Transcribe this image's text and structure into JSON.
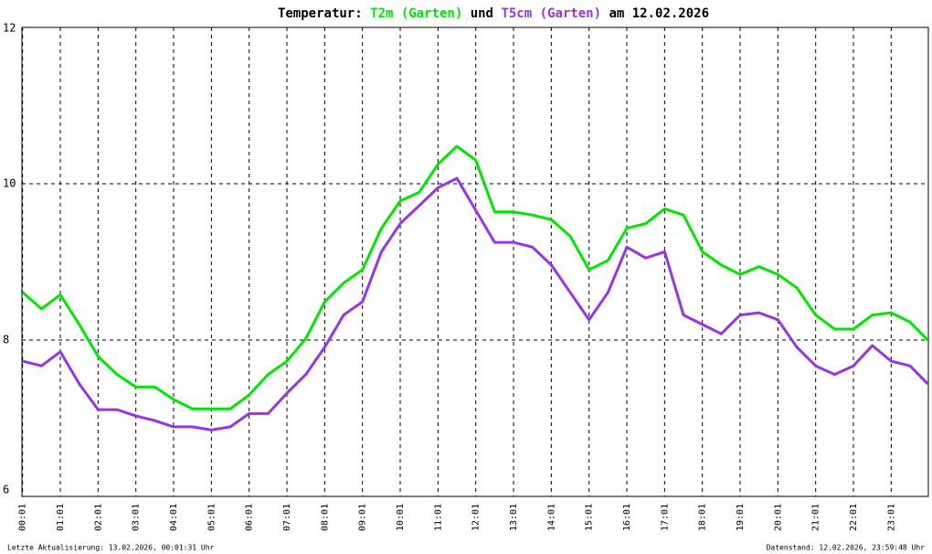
{
  "chart_data": {
    "type": "line",
    "title_prefix": "Temperatur:",
    "title_joiner": "und",
    "title_suffix": "am 12.02.2026",
    "x": [
      "00:01",
      "00:31",
      "01:01",
      "01:31",
      "02:01",
      "02:31",
      "03:01",
      "03:31",
      "04:01",
      "04:31",
      "05:01",
      "05:31",
      "06:01",
      "06:31",
      "07:01",
      "07:31",
      "08:01",
      "08:31",
      "09:01",
      "09:31",
      "10:01",
      "10:31",
      "11:01",
      "11:31",
      "12:01",
      "12:31",
      "13:01",
      "13:31",
      "14:01",
      "14:31",
      "15:01",
      "15:31",
      "16:01",
      "16:31",
      "17:01",
      "17:31",
      "18:01",
      "18:31",
      "19:01",
      "19:31",
      "20:01",
      "20:31",
      "21:01",
      "21:31",
      "22:01",
      "22:31",
      "23:01",
      "23:31",
      "23:59"
    ],
    "series": [
      {
        "name": "T2m (Garten)",
        "color": "#00e600",
        "values": [
          8.61,
          8.4,
          8.58,
          8.2,
          7.79,
          7.56,
          7.4,
          7.4,
          7.24,
          7.12,
          7.12,
          7.12,
          7.3,
          7.56,
          7.73,
          8.02,
          8.49,
          8.73,
          8.9,
          9.43,
          9.78,
          9.89,
          10.25,
          10.48,
          10.3,
          9.64,
          9.64,
          9.6,
          9.54,
          9.33,
          8.9,
          9.02,
          9.43,
          9.49,
          9.68,
          9.6,
          9.13,
          8.96,
          8.84,
          8.94,
          8.84,
          8.67,
          8.32,
          8.14,
          8.14,
          8.32,
          8.35,
          8.23,
          8.0
        ]
      },
      {
        "name": "T5cm (Garten)",
        "color": "#9933e6",
        "values": [
          7.73,
          7.67,
          7.85,
          7.44,
          7.11,
          7.11,
          7.03,
          6.97,
          6.89,
          6.89,
          6.85,
          6.89,
          7.06,
          7.06,
          7.32,
          7.56,
          7.91,
          8.32,
          8.49,
          9.13,
          9.49,
          9.72,
          9.95,
          10.07,
          9.66,
          9.25,
          9.25,
          9.19,
          8.96,
          8.61,
          8.26,
          8.61,
          9.19,
          9.05,
          9.13,
          8.32,
          8.2,
          8.08,
          8.32,
          8.35,
          8.26,
          7.91,
          7.67,
          7.56,
          7.67,
          7.93,
          7.73,
          7.67,
          7.44
        ]
      }
    ],
    "xlim": [
      "00:00",
      "24:00"
    ],
    "xticks": [
      "00:01",
      "01:01",
      "02:01",
      "03:01",
      "04:01",
      "05:01",
      "06:01",
      "07:01",
      "08:01",
      "09:01",
      "10:01",
      "11:01",
      "12:01",
      "13:01",
      "14:01",
      "15:01",
      "16:01",
      "17:01",
      "18:01",
      "19:01",
      "20:01",
      "21:01",
      "22:01",
      "23:01"
    ],
    "ylim": [
      6,
      12
    ],
    "yticks": [
      6,
      8,
      10,
      12
    ],
    "grid": true,
    "footer_left": "Letzte Aktualisierung: 13.02.2026, 00:01:31 Uhr",
    "footer_right": "Datenstand: 12.02.2026, 23:59:48 Uhr"
  }
}
